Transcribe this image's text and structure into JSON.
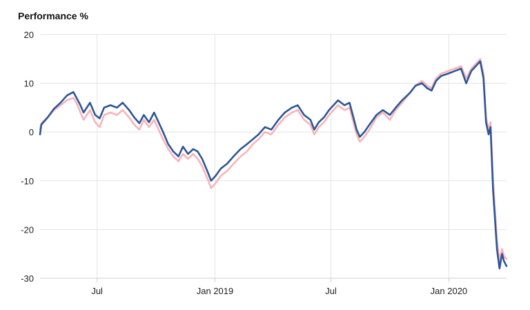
{
  "chart_data": {
    "type": "line",
    "ylabel": "Performance %",
    "xlabel": "",
    "ylim": [
      -30,
      20
    ],
    "yticks": [
      20,
      10,
      0,
      -10,
      -20,
      -30
    ],
    "xlim": [
      "2018-04-03",
      "2020-03-31"
    ],
    "xticks": [
      {
        "date": "2018-07-01",
        "label": "Jul"
      },
      {
        "date": "2019-01-01",
        "label": "Jan 2019"
      },
      {
        "date": "2019-07-01",
        "label": "Jul"
      },
      {
        "date": "2020-01-01",
        "label": "Jan 2020"
      }
    ],
    "grid": true,
    "legend": "none",
    "series": [
      {
        "color": "#2c5597",
        "points": [
          [
            "2018-04-03",
            -0.5
          ],
          [
            "2018-04-05",
            1.5
          ],
          [
            "2018-04-15",
            3.0
          ],
          [
            "2018-04-25",
            4.8
          ],
          [
            "2018-05-05",
            6.0
          ],
          [
            "2018-05-15",
            7.5
          ],
          [
            "2018-05-25",
            8.2
          ],
          [
            "2018-05-30",
            7.0
          ],
          [
            "2018-06-05",
            5.5
          ],
          [
            "2018-06-10",
            4.0
          ],
          [
            "2018-06-20",
            6.0
          ],
          [
            "2018-06-28",
            3.5
          ],
          [
            "2018-07-05",
            2.8
          ],
          [
            "2018-07-12",
            5.0
          ],
          [
            "2018-07-22",
            5.5
          ],
          [
            "2018-08-01",
            5.0
          ],
          [
            "2018-08-10",
            6.0
          ],
          [
            "2018-08-20",
            4.5
          ],
          [
            "2018-08-28",
            3.0
          ],
          [
            "2018-09-05",
            1.8
          ],
          [
            "2018-09-12",
            3.5
          ],
          [
            "2018-09-20",
            2.0
          ],
          [
            "2018-09-28",
            4.0
          ],
          [
            "2018-10-05",
            2.0
          ],
          [
            "2018-10-12",
            0.0
          ],
          [
            "2018-10-20",
            -2.5
          ],
          [
            "2018-10-28",
            -4.0
          ],
          [
            "2018-11-05",
            -5.0
          ],
          [
            "2018-11-12",
            -3.0
          ],
          [
            "2018-11-20",
            -4.5
          ],
          [
            "2018-11-28",
            -3.5
          ],
          [
            "2018-12-05",
            -4.0
          ],
          [
            "2018-12-12",
            -5.5
          ],
          [
            "2018-12-20",
            -8.0
          ],
          [
            "2018-12-26",
            -10.0
          ],
          [
            "2019-01-02",
            -9.0
          ],
          [
            "2019-01-10",
            -7.5
          ],
          [
            "2019-01-20",
            -6.5
          ],
          [
            "2019-01-30",
            -5.0
          ],
          [
            "2019-02-10",
            -3.5
          ],
          [
            "2019-02-20",
            -2.5
          ],
          [
            "2019-03-01",
            -1.5
          ],
          [
            "2019-03-10",
            -0.5
          ],
          [
            "2019-03-20",
            1.0
          ],
          [
            "2019-03-30",
            0.5
          ],
          [
            "2019-04-10",
            2.5
          ],
          [
            "2019-04-20",
            4.0
          ],
          [
            "2019-05-01",
            5.0
          ],
          [
            "2019-05-10",
            5.5
          ],
          [
            "2019-05-20",
            3.5
          ],
          [
            "2019-05-30",
            2.5
          ],
          [
            "2019-06-05",
            0.5
          ],
          [
            "2019-06-12",
            2.0
          ],
          [
            "2019-06-20",
            3.0
          ],
          [
            "2019-06-28",
            4.5
          ],
          [
            "2019-07-05",
            5.5
          ],
          [
            "2019-07-12",
            6.5
          ],
          [
            "2019-07-22",
            5.5
          ],
          [
            "2019-07-30",
            6.0
          ],
          [
            "2019-08-05",
            3.0
          ],
          [
            "2019-08-10",
            0.5
          ],
          [
            "2019-08-15",
            -1.0
          ],
          [
            "2019-08-22",
            0.0
          ],
          [
            "2019-08-30",
            1.5
          ],
          [
            "2019-09-10",
            3.5
          ],
          [
            "2019-09-20",
            4.5
          ],
          [
            "2019-10-01",
            3.5
          ],
          [
            "2019-10-10",
            5.0
          ],
          [
            "2019-10-20",
            6.5
          ],
          [
            "2019-11-01",
            8.0
          ],
          [
            "2019-11-10",
            9.5
          ],
          [
            "2019-11-20",
            10.0
          ],
          [
            "2019-11-28",
            9.0
          ],
          [
            "2019-12-05",
            8.5
          ],
          [
            "2019-12-12",
            10.5
          ],
          [
            "2019-12-20",
            11.5
          ],
          [
            "2019-12-31",
            12.0
          ],
          [
            "2020-01-10",
            12.5
          ],
          [
            "2020-01-20",
            13.0
          ],
          [
            "2020-01-28",
            10.0
          ],
          [
            "2020-02-05",
            12.5
          ],
          [
            "2020-02-12",
            13.5
          ],
          [
            "2020-02-19",
            14.5
          ],
          [
            "2020-02-24",
            11.0
          ],
          [
            "2020-02-28",
            2.0
          ],
          [
            "2020-03-03",
            -0.5
          ],
          [
            "2020-03-06",
            1.0
          ],
          [
            "2020-03-10",
            -12.0
          ],
          [
            "2020-03-16",
            -24.0
          ],
          [
            "2020-03-20",
            -28.0
          ],
          [
            "2020-03-24",
            -25.0
          ],
          [
            "2020-03-27",
            -26.5
          ],
          [
            "2020-03-31",
            -27.5
          ]
        ]
      },
      {
        "color": "#f7b3b9",
        "points": [
          [
            "2018-04-03",
            0.5
          ],
          [
            "2018-04-05",
            1.8
          ],
          [
            "2018-04-15",
            3.0
          ],
          [
            "2018-04-25",
            4.5
          ],
          [
            "2018-05-05",
            5.5
          ],
          [
            "2018-05-15",
            6.5
          ],
          [
            "2018-05-25",
            7.0
          ],
          [
            "2018-05-30",
            6.0
          ],
          [
            "2018-06-05",
            4.0
          ],
          [
            "2018-06-10",
            2.5
          ],
          [
            "2018-06-20",
            4.5
          ],
          [
            "2018-06-28",
            2.0
          ],
          [
            "2018-07-05",
            1.0
          ],
          [
            "2018-07-12",
            3.5
          ],
          [
            "2018-07-22",
            4.0
          ],
          [
            "2018-08-01",
            3.5
          ],
          [
            "2018-08-10",
            4.5
          ],
          [
            "2018-08-20",
            3.0
          ],
          [
            "2018-08-28",
            1.5
          ],
          [
            "2018-09-05",
            0.5
          ],
          [
            "2018-09-12",
            2.5
          ],
          [
            "2018-09-20",
            1.0
          ],
          [
            "2018-09-28",
            2.5
          ],
          [
            "2018-10-05",
            0.5
          ],
          [
            "2018-10-12",
            -1.5
          ],
          [
            "2018-10-20",
            -3.5
          ],
          [
            "2018-10-28",
            -5.0
          ],
          [
            "2018-11-05",
            -6.0
          ],
          [
            "2018-11-12",
            -4.5
          ],
          [
            "2018-11-20",
            -5.5
          ],
          [
            "2018-11-28",
            -4.5
          ],
          [
            "2018-12-05",
            -5.5
          ],
          [
            "2018-12-12",
            -7.0
          ],
          [
            "2018-12-20",
            -9.5
          ],
          [
            "2018-12-26",
            -11.5
          ],
          [
            "2019-01-02",
            -10.5
          ],
          [
            "2019-01-10",
            -9.0
          ],
          [
            "2019-01-20",
            -8.0
          ],
          [
            "2019-01-30",
            -6.5
          ],
          [
            "2019-02-10",
            -5.0
          ],
          [
            "2019-02-20",
            -4.0
          ],
          [
            "2019-03-01",
            -2.5
          ],
          [
            "2019-03-10",
            -1.5
          ],
          [
            "2019-03-20",
            0.0
          ],
          [
            "2019-03-30",
            -0.5
          ],
          [
            "2019-04-10",
            1.5
          ],
          [
            "2019-04-20",
            3.0
          ],
          [
            "2019-05-01",
            4.0
          ],
          [
            "2019-05-10",
            4.5
          ],
          [
            "2019-05-20",
            2.5
          ],
          [
            "2019-05-30",
            1.5
          ],
          [
            "2019-06-05",
            -0.5
          ],
          [
            "2019-06-12",
            1.0
          ],
          [
            "2019-06-20",
            2.0
          ],
          [
            "2019-06-28",
            3.5
          ],
          [
            "2019-07-05",
            4.5
          ],
          [
            "2019-07-12",
            5.5
          ],
          [
            "2019-07-22",
            4.5
          ],
          [
            "2019-07-30",
            5.0
          ],
          [
            "2019-08-05",
            2.0
          ],
          [
            "2019-08-10",
            -0.5
          ],
          [
            "2019-08-15",
            -2.0
          ],
          [
            "2019-08-22",
            -1.0
          ],
          [
            "2019-08-30",
            0.5
          ],
          [
            "2019-09-10",
            3.0
          ],
          [
            "2019-09-20",
            4.0
          ],
          [
            "2019-10-01",
            2.5
          ],
          [
            "2019-10-10",
            4.5
          ],
          [
            "2019-10-20",
            6.0
          ],
          [
            "2019-11-01",
            8.0
          ],
          [
            "2019-11-10",
            9.5
          ],
          [
            "2019-11-20",
            10.5
          ],
          [
            "2019-11-28",
            9.5
          ],
          [
            "2019-12-05",
            9.0
          ],
          [
            "2019-12-12",
            11.0
          ],
          [
            "2019-12-20",
            12.0
          ],
          [
            "2019-12-31",
            12.5
          ],
          [
            "2020-01-10",
            13.0
          ],
          [
            "2020-01-20",
            13.5
          ],
          [
            "2020-01-28",
            11.0
          ],
          [
            "2020-02-05",
            13.0
          ],
          [
            "2020-02-12",
            14.0
          ],
          [
            "2020-02-19",
            15.0
          ],
          [
            "2020-02-24",
            12.0
          ],
          [
            "2020-02-28",
            3.0
          ],
          [
            "2020-03-03",
            0.5
          ],
          [
            "2020-03-06",
            2.0
          ],
          [
            "2020-03-10",
            -10.0
          ],
          [
            "2020-03-16",
            -22.0
          ],
          [
            "2020-03-20",
            -26.5
          ],
          [
            "2020-03-24",
            -24.0
          ],
          [
            "2020-03-27",
            -25.5
          ],
          [
            "2020-03-31",
            -26.0
          ]
        ]
      }
    ]
  }
}
